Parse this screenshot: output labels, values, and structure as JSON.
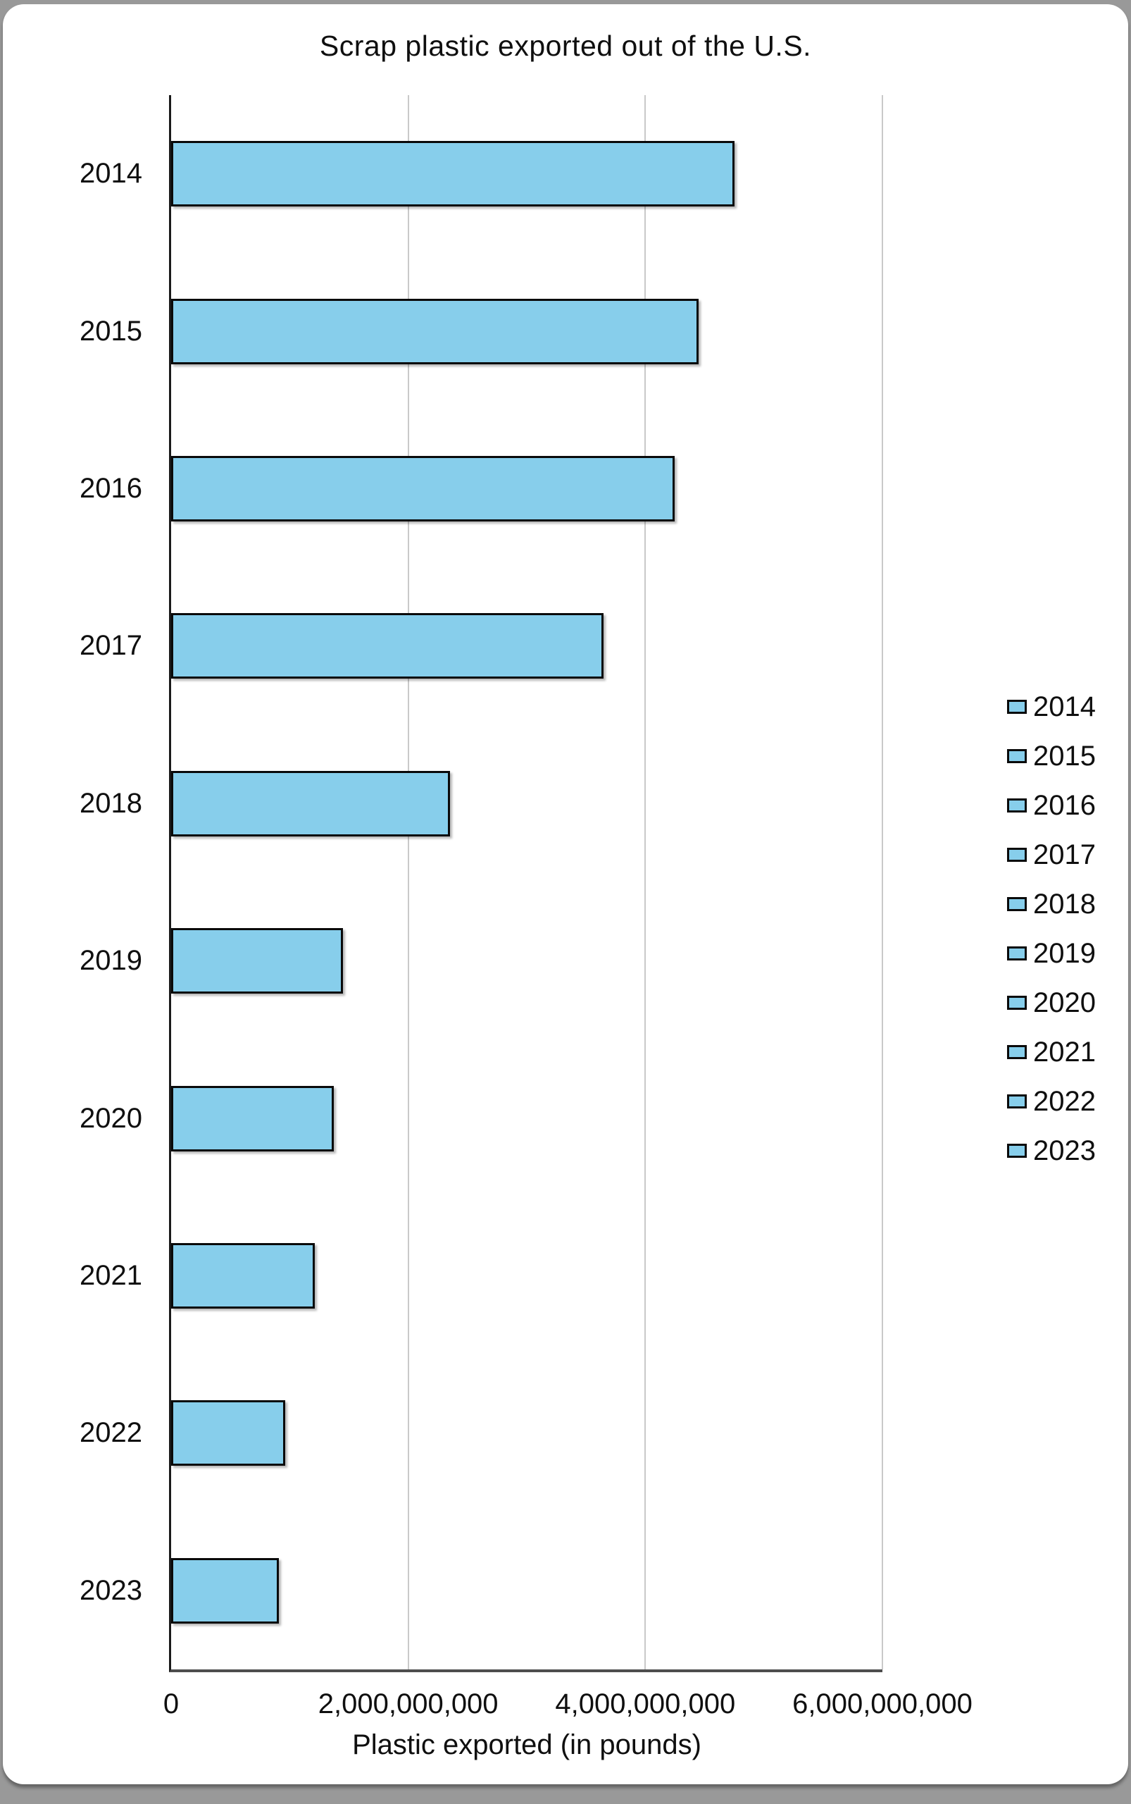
{
  "title": "Scrap plastic exported out of the U.S.",
  "colors": {
    "bar_fill": "#87CEEB",
    "bar_border": "#0a0a0a",
    "gridline": "#c9c9c9",
    "axis_line": "#1a1a1a",
    "page_background": "#999999",
    "card_background": "#ffffff"
  },
  "chart_data": {
    "type": "bar",
    "orientation": "horizontal",
    "title": "Scrap plastic exported out of the U.S.",
    "xlabel": "Plastic exported (in pounds)",
    "ylabel": "",
    "categories": [
      "2014",
      "2015",
      "2016",
      "2017",
      "2018",
      "2019",
      "2020",
      "2021",
      "2022",
      "2023"
    ],
    "values": [
      4750000000,
      4450000000,
      4250000000,
      3650000000,
      2350000000,
      1450000000,
      1370000000,
      1210000000,
      960000000,
      910000000
    ],
    "xlim": [
      0,
      6000000000
    ],
    "x_tick_values": [
      0,
      2000000000,
      4000000000,
      6000000000
    ],
    "x_tick_labels": [
      "0",
      "2,000,000,000",
      "4,000,000,000",
      "6,000,000,000"
    ],
    "grid": true,
    "legend_position": "right",
    "legend_entries": [
      "2014",
      "2015",
      "2016",
      "2017",
      "2018",
      "2019",
      "2020",
      "2021",
      "2022",
      "2023"
    ]
  }
}
